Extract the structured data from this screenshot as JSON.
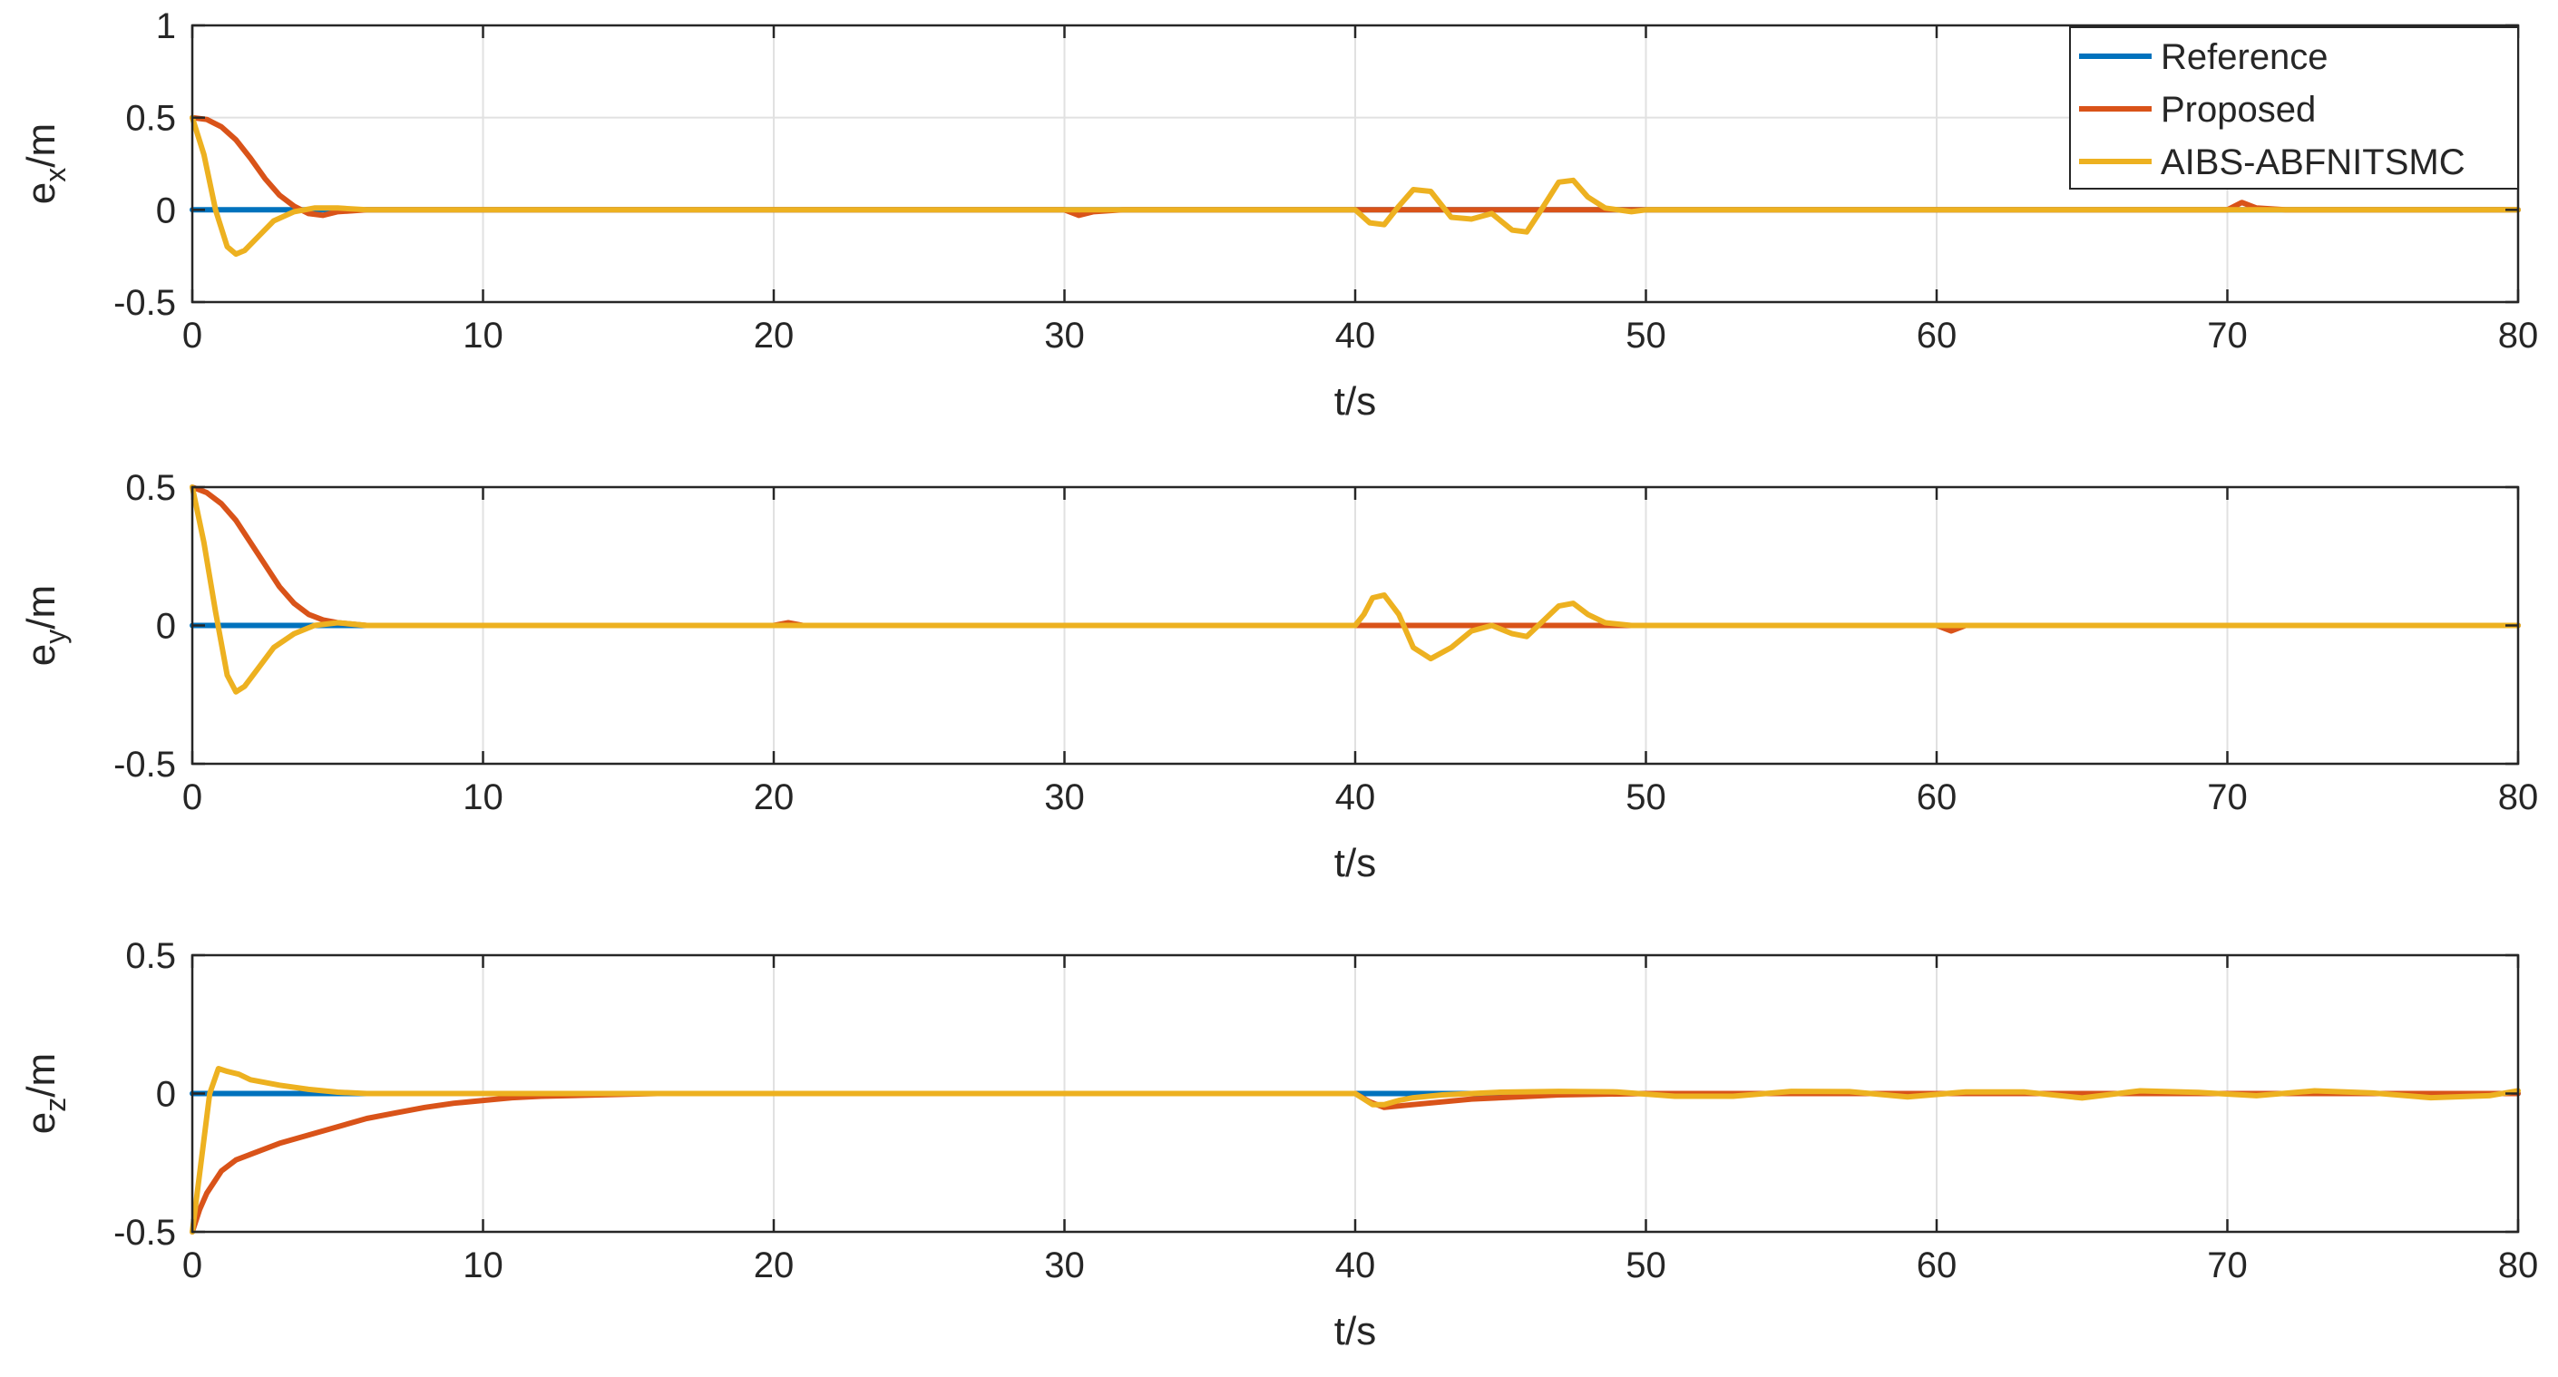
{
  "colors": {
    "reference": "#0072bd",
    "proposed": "#d95319",
    "aibs": "#edb120",
    "grid": "#e1e1e1",
    "axis": "#262626"
  },
  "legend": {
    "placement": "top-right",
    "entries": [
      {
        "label": "Reference",
        "color": "#0072bd"
      },
      {
        "label": "Proposed",
        "color": "#d95319"
      },
      {
        "label": "AIBS-ABFNITSMC",
        "color": "#edb120"
      }
    ]
  },
  "chart_data": [
    {
      "type": "line",
      "xlabel": "t/s",
      "ylabel": {
        "base": "e",
        "sub": "x",
        "unit": "/m"
      },
      "xlim": [
        0,
        80
      ],
      "ylim": [
        -0.5,
        1
      ],
      "xticks": [
        "0",
        "10",
        "20",
        "30",
        "40",
        "50",
        "60",
        "70",
        "80"
      ],
      "yticks": [
        "-0.5",
        "0",
        "0.5",
        "1"
      ],
      "ytick_values": [
        -0.5,
        0,
        0.5,
        1
      ],
      "grid": true,
      "legend": true,
      "series": [
        {
          "name": "Reference",
          "color": "#0072bd",
          "x": [
            0,
            80
          ],
          "y": [
            0,
            0
          ]
        },
        {
          "name": "Proposed",
          "color": "#d95319",
          "x": [
            0,
            0.5,
            1,
            1.5,
            2,
            2.5,
            3,
            3.5,
            4,
            4.5,
            5,
            6,
            8,
            30,
            30.5,
            31,
            32,
            70,
            70.5,
            71,
            72,
            80
          ],
          "y": [
            0.5,
            0.49,
            0.45,
            0.38,
            0.28,
            0.17,
            0.08,
            0.02,
            -0.02,
            -0.03,
            -0.01,
            0,
            0,
            0,
            -0.03,
            -0.01,
            0,
            0,
            0.04,
            0.01,
            0,
            0
          ]
        },
        {
          "name": "AIBS-ABFNITSMC",
          "color": "#edb120",
          "x": [
            0,
            0.4,
            0.8,
            1.2,
            1.5,
            1.8,
            2.3,
            2.8,
            3.5,
            4.2,
            5,
            6,
            8,
            40,
            40.5,
            41,
            41.5,
            42,
            42.6,
            43.3,
            44,
            44.7,
            45.4,
            45.9,
            46.4,
            47,
            47.5,
            48,
            48.6,
            49.5,
            50,
            80
          ],
          "y": [
            0.5,
            0.3,
            0,
            -0.2,
            -0.24,
            -0.22,
            -0.14,
            -0.06,
            -0.01,
            0.01,
            0.01,
            0,
            0,
            0,
            -0.07,
            -0.08,
            0.02,
            0.11,
            0.1,
            -0.04,
            -0.05,
            -0.02,
            -0.11,
            -0.12,
            0,
            0.15,
            0.16,
            0.07,
            0.01,
            -0.01,
            0,
            0
          ]
        }
      ]
    },
    {
      "type": "line",
      "xlabel": "t/s",
      "ylabel": {
        "base": "e",
        "sub": "y",
        "unit": "/m"
      },
      "xlim": [
        0,
        80
      ],
      "ylim": [
        -0.5,
        0.5
      ],
      "xticks": [
        "0",
        "10",
        "20",
        "30",
        "40",
        "50",
        "60",
        "70",
        "80"
      ],
      "yticks": [
        "-0.5",
        "0",
        "0.5"
      ],
      "ytick_values": [
        -0.5,
        0,
        0.5
      ],
      "grid": true,
      "legend": false,
      "series": [
        {
          "name": "Reference",
          "color": "#0072bd",
          "x": [
            0,
            80
          ],
          "y": [
            0,
            0
          ]
        },
        {
          "name": "Proposed",
          "color": "#d95319",
          "x": [
            0,
            0.5,
            1,
            1.5,
            2,
            2.5,
            3,
            3.5,
            4,
            4.5,
            5,
            5.5,
            6,
            8,
            20,
            20.5,
            21,
            22,
            60,
            60.5,
            61,
            62,
            80
          ],
          "y": [
            0.5,
            0.48,
            0.44,
            0.38,
            0.3,
            0.22,
            0.14,
            0.08,
            0.04,
            0.02,
            0.01,
            0.005,
            0,
            0,
            0,
            0.01,
            0,
            0,
            0,
            -0.02,
            0,
            0,
            0
          ]
        },
        {
          "name": "AIBS-ABFNITSMC",
          "color": "#edb120",
          "x": [
            0,
            0.4,
            0.8,
            1.2,
            1.5,
            1.8,
            2.3,
            2.8,
            3.5,
            4.2,
            5,
            6,
            8,
            40,
            40.3,
            40.6,
            41,
            41.5,
            42,
            42.6,
            43.3,
            44,
            44.7,
            45.4,
            45.9,
            46.4,
            47,
            47.5,
            48,
            48.6,
            49.5,
            50,
            80
          ],
          "y": [
            0.5,
            0.3,
            0.05,
            -0.18,
            -0.24,
            -0.22,
            -0.15,
            -0.08,
            -0.03,
            0,
            0.01,
            0,
            0,
            0,
            0.04,
            0.1,
            0.11,
            0.04,
            -0.08,
            -0.12,
            -0.08,
            -0.02,
            0,
            -0.03,
            -0.04,
            0.01,
            0.07,
            0.08,
            0.04,
            0.01,
            0,
            0,
            0
          ]
        }
      ]
    },
    {
      "type": "line",
      "xlabel": "t/s",
      "ylabel": {
        "base": "e",
        "sub": "z",
        "unit": "/m"
      },
      "xlim": [
        0,
        80
      ],
      "ylim": [
        -0.5,
        0.5
      ],
      "xticks": [
        "0",
        "10",
        "20",
        "30",
        "40",
        "50",
        "60",
        "70",
        "80"
      ],
      "yticks": [
        "-0.5",
        "0",
        "0.5"
      ],
      "ytick_values": [
        -0.5,
        0,
        0.5
      ],
      "grid": true,
      "legend": false,
      "series": [
        {
          "name": "Reference",
          "color": "#0072bd",
          "x": [
            0,
            80
          ],
          "y": [
            0,
            0
          ]
        },
        {
          "name": "Proposed",
          "color": "#d95319",
          "x": [
            0,
            0.25,
            0.5,
            1,
            1.5,
            2,
            3,
            4,
            5,
            6,
            7,
            8,
            9,
            10,
            11,
            12,
            14,
            16,
            20,
            40,
            40.5,
            41,
            42,
            43,
            44,
            45,
            47,
            50,
            80
          ],
          "y": [
            -0.5,
            -0.42,
            -0.36,
            -0.28,
            -0.24,
            -0.22,
            -0.18,
            -0.15,
            -0.12,
            -0.09,
            -0.07,
            -0.05,
            -0.035,
            -0.025,
            -0.015,
            -0.01,
            -0.005,
            0,
            0,
            0,
            -0.03,
            -0.05,
            -0.04,
            -0.03,
            -0.02,
            -0.015,
            -0.005,
            0,
            0
          ]
        },
        {
          "name": "AIBS-ABFNITSMC",
          "color": "#edb120",
          "x": [
            0,
            0.3,
            0.6,
            0.9,
            1.2,
            1.6,
            2,
            3,
            4,
            5,
            6,
            8,
            40,
            40.3,
            40.6,
            41,
            41.5,
            42,
            43,
            44,
            45,
            47,
            49,
            51,
            53,
            55,
            57,
            59,
            61,
            63,
            65,
            67,
            69,
            71,
            73,
            75,
            77,
            79,
            80
          ],
          "y": [
            -0.5,
            -0.25,
            0,
            0.09,
            0.08,
            0.07,
            0.05,
            0.03,
            0.015,
            0.005,
            0,
            0,
            0,
            -0.02,
            -0.04,
            -0.04,
            -0.025,
            -0.015,
            -0.005,
            0,
            0.005,
            0.008,
            0.006,
            -0.01,
            -0.01,
            0.008,
            0.007,
            -0.012,
            0.006,
            0.006,
            -0.016,
            0.01,
            0.004,
            -0.008,
            0.01,
            0.002,
            -0.015,
            -0.008,
            0.01
          ]
        }
      ]
    }
  ]
}
